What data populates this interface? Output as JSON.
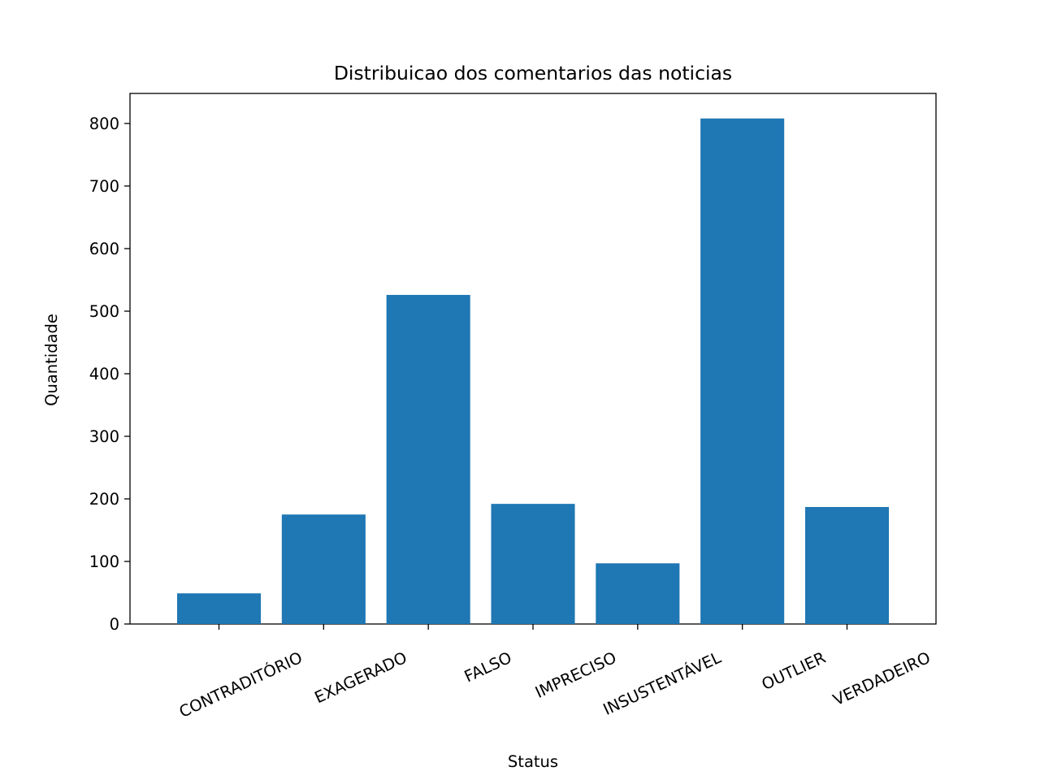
{
  "chart_data": {
    "type": "bar",
    "title": "Distribuicao dos comentarios das noticias",
    "xlabel": "Status",
    "ylabel": "Quantidade",
    "categories": [
      "CONTRADITÓRIO",
      "EXAGERADO",
      "FALSO",
      "IMPRECISO",
      "INSUSTENTÁVEL",
      "OUTLIER",
      "VERDADEIRO"
    ],
    "values": [
      49,
      175,
      526,
      192,
      97,
      808,
      187
    ],
    "ylim": [
      0,
      848
    ],
    "yticks": [
      0,
      100,
      200,
      300,
      400,
      500,
      600,
      700,
      800
    ],
    "bar_color": "#1f77b4",
    "grid": false,
    "legend": "none"
  }
}
